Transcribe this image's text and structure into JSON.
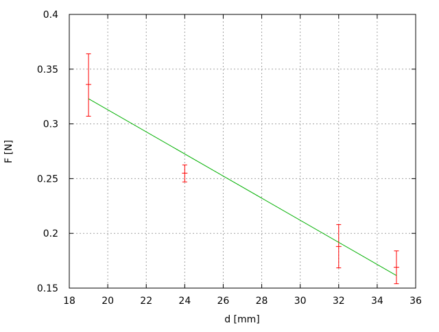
{
  "chart_data": {
    "type": "scatter",
    "title": "",
    "xlabel": "d [mm]",
    "ylabel": "F [N]",
    "xlim": [
      18,
      36
    ],
    "ylim": [
      0.15,
      0.4
    ],
    "xticks": [
      "18",
      "20",
      "22",
      "24",
      "26",
      "28",
      "30",
      "32",
      "34",
      "36"
    ],
    "yticks": [
      "0.15",
      "0.2",
      "0.25",
      "0.3",
      "0.35",
      "0.4"
    ],
    "grid": true,
    "legend": "none",
    "series": [
      {
        "type": "errorbars",
        "color": "#ff0000",
        "points": [
          {
            "x": 19,
            "y": 0.336,
            "ylow": 0.307,
            "yhigh": 0.364
          },
          {
            "x": 24,
            "y": 0.255,
            "ylow": 0.247,
            "yhigh": 0.2625
          },
          {
            "x": 32,
            "y": 0.188,
            "ylow": 0.1685,
            "yhigh": 0.208
          },
          {
            "x": 35,
            "y": 0.169,
            "ylow": 0.154,
            "yhigh": 0.184
          }
        ]
      },
      {
        "type": "line",
        "color": "#00b000",
        "x": [
          19,
          35
        ],
        "y": [
          0.323,
          0.1615
        ]
      }
    ]
  }
}
